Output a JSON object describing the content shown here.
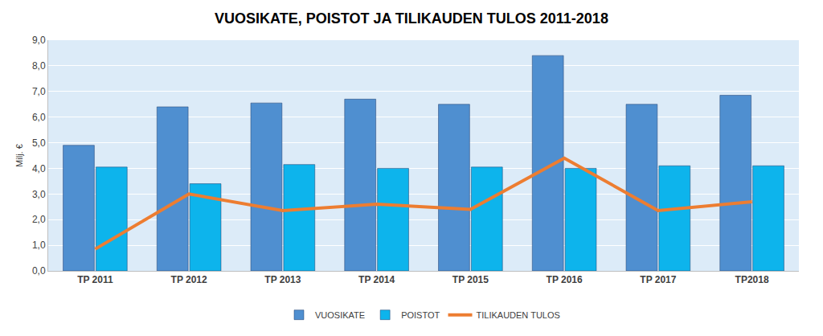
{
  "chart_data": {
    "type": "bar",
    "title": "VUOSIKATE, POISTOT JA TILIKAUDEN TULOS 2011-2018",
    "y_label": "Milj. €",
    "categories": [
      "TP 2011",
      "TP 2012",
      "TP 2013",
      "TP 2014",
      "TP 2015",
      "TP 2016",
      "TP 2017",
      "TP2018"
    ],
    "series": [
      {
        "name": "VUOSIKATE",
        "type": "bar",
        "color": "#4f8fd0",
        "values": [
          4.9,
          6.4,
          6.55,
          6.7,
          6.5,
          8.4,
          6.5,
          6.85
        ]
      },
      {
        "name": "POISTOT",
        "type": "bar",
        "color": "#0db4ec",
        "values": [
          4.05,
          3.4,
          4.15,
          4.0,
          4.05,
          4.0,
          4.1,
          4.1
        ]
      },
      {
        "name": "TILIKAUDEN TULOS",
        "type": "line",
        "color": "#ed7d31",
        "values": [
          0.85,
          3.0,
          2.35,
          2.6,
          2.4,
          4.4,
          2.35,
          2.7
        ]
      }
    ],
    "ylim": [
      0,
      9
    ],
    "yticks": [
      {
        "value": 0,
        "label": "0,0"
      },
      {
        "value": 1,
        "label": "1,0"
      },
      {
        "value": 2,
        "label": "2,0"
      },
      {
        "value": 3,
        "label": "3,0"
      },
      {
        "value": 4,
        "label": "4,0"
      },
      {
        "value": 5,
        "label": "5,0"
      },
      {
        "value": 6,
        "label": "6,0"
      },
      {
        "value": 7,
        "label": "7,0"
      },
      {
        "value": 8,
        "label": "8,0"
      },
      {
        "value": 9,
        "label": "9,0"
      }
    ],
    "grid": true,
    "legend": "bottom"
  }
}
